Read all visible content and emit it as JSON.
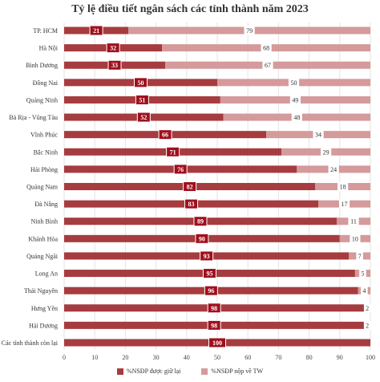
{
  "chart_data": {
    "type": "bar",
    "orientation": "horizontal",
    "stacked": true,
    "title": "Tỷ lệ điều tiết ngân sách các tỉnh thành năm 2023",
    "xlabel": "",
    "ylabel": "",
    "xlim": [
      0,
      100
    ],
    "x_ticks": [
      "0",
      "10",
      "20",
      "30",
      "40",
      "50",
      "60",
      "70",
      "80",
      "90",
      "100"
    ],
    "grid": true,
    "legend_position": "bottom",
    "categories": [
      "TP. HCM",
      "Hà Nội",
      "Bình Dương",
      "Đồng Nai",
      "Quảng Ninh",
      "Bà Rịa - Vũng Tàu",
      "Vĩnh Phúc",
      "Bắc Ninh",
      "Hải Phòng",
      "Quảng Nam",
      "Đà Nẵng",
      "Ninh Bình",
      "Khánh Hòa",
      "Quảng Ngãi",
      "Long An",
      "Thái Nguyên",
      "Hưng Yên",
      "Hải Dương",
      "Các tỉnh thành còn lại"
    ],
    "series": [
      {
        "name": "%NSĐP được giữ lại",
        "color": "#a63c3f",
        "values": [
          21,
          32,
          33,
          50,
          51,
          52,
          66,
          71,
          76,
          82,
          83,
          89,
          90,
          93,
          95,
          96,
          98,
          98,
          100
        ],
        "labels": [
          "21",
          "32",
          "33",
          "50",
          "51",
          "52",
          "66",
          "71",
          "76",
          "82",
          "83",
          "89",
          "90",
          "93",
          "95",
          "96",
          "98",
          "98",
          "100"
        ]
      },
      {
        "name": "%NSĐP nộp về TW",
        "color": "#d59a9b",
        "values": [
          79,
          68,
          67,
          50,
          49,
          48,
          34,
          29,
          24,
          18,
          17,
          11,
          10,
          7,
          5,
          4,
          2,
          2,
          0
        ],
        "labels": [
          "79",
          "68",
          "67",
          "50",
          "49",
          "48",
          "34",
          "29",
          "24",
          "18",
          "17",
          "11",
          "10",
          "7",
          "5",
          "4",
          "2",
          "2",
          ""
        ]
      }
    ]
  }
}
